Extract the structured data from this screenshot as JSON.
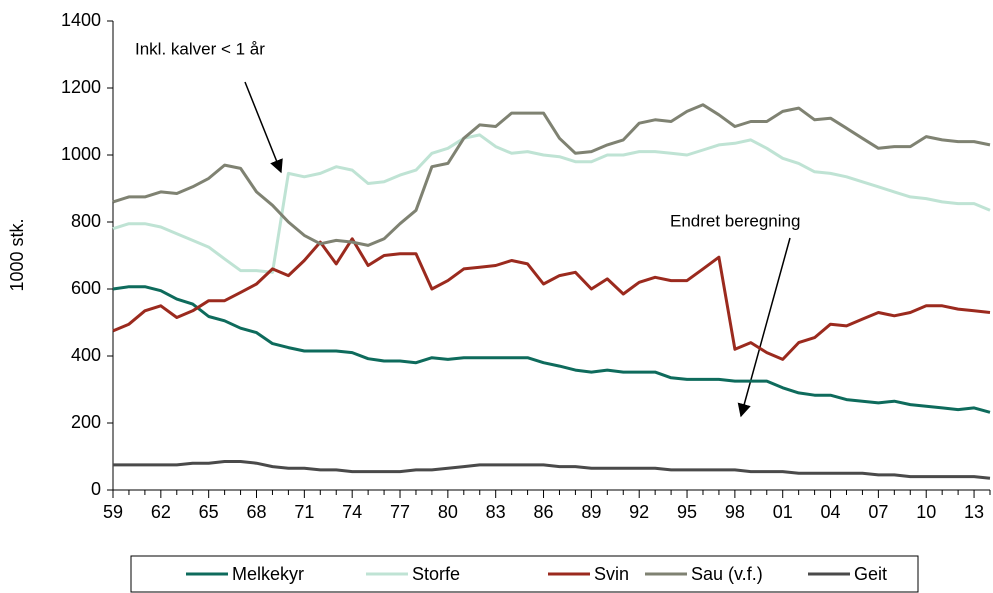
{
  "chart_data": {
    "type": "line",
    "y_label": "1000 stk.",
    "annotations": [
      "Inkl. kalver < 1 år",
      "Endret beregning"
    ],
    "categories": [
      "59",
      null,
      null,
      "62",
      null,
      null,
      "65",
      null,
      null,
      "68",
      null,
      null,
      "71",
      null,
      null,
      "74",
      null,
      null,
      "77",
      null,
      null,
      "80",
      null,
      null,
      "83",
      null,
      null,
      "86",
      null,
      null,
      "89",
      null,
      null,
      "92",
      null,
      null,
      "95",
      null,
      null,
      "98",
      null,
      null,
      "01",
      null,
      null,
      "04",
      null,
      null,
      "07",
      null,
      null,
      "10",
      null,
      null,
      "13",
      null
    ],
    "ylim": [
      0,
      1400
    ],
    "yticks": [
      0,
      200,
      400,
      600,
      800,
      1000,
      1200,
      1400
    ],
    "legend": "bottom",
    "series": [
      {
        "name": "Melkekyr",
        "color": "#0e6b5c",
        "values": [
          600,
          607,
          607,
          595,
          570,
          555,
          518,
          505,
          483,
          470,
          437,
          425,
          415,
          415,
          415,
          410,
          392,
          385,
          385,
          380,
          395,
          390,
          395,
          395,
          395,
          395,
          395,
          380,
          370,
          358,
          352,
          358,
          352,
          352,
          352,
          335,
          330,
          330,
          330,
          325,
          325,
          325,
          305,
          290,
          283,
          283,
          270,
          265,
          260,
          265,
          255,
          250,
          245,
          240,
          245,
          232
        ]
      },
      {
        "name": "Storfe",
        "color": "#bfe3d4",
        "values": [
          780,
          795,
          795,
          785,
          765,
          745,
          725,
          690,
          655,
          655,
          650,
          945,
          935,
          945,
          965,
          955,
          915,
          920,
          940,
          955,
          1005,
          1020,
          1050,
          1060,
          1025,
          1005,
          1010,
          1000,
          995,
          980,
          980,
          1000,
          1000,
          1010,
          1010,
          1005,
          1000,
          1015,
          1030,
          1035,
          1045,
          1020,
          990,
          975,
          950,
          945,
          935,
          920,
          905,
          890,
          875,
          870,
          860,
          855,
          855,
          835
        ]
      },
      {
        "name": "Svin",
        "color": "#9b2a1e",
        "values": [
          475,
          495,
          535,
          550,
          515,
          535,
          565,
          565,
          590,
          615,
          660,
          640,
          685,
          740,
          675,
          750,
          670,
          700,
          705,
          705,
          600,
          625,
          660,
          665,
          670,
          685,
          675,
          615,
          640,
          650,
          600,
          630,
          585,
          620,
          635,
          625,
          625,
          660,
          695,
          420,
          440,
          410,
          390,
          440,
          455,
          495,
          490,
          510,
          530,
          520,
          530,
          550,
          550,
          540,
          535,
          530
        ]
      },
      {
        "name": "Sau (v.f.)",
        "color": "#7f8272",
        "values": [
          860,
          875,
          875,
          890,
          885,
          905,
          930,
          970,
          960,
          890,
          850,
          800,
          760,
          735,
          745,
          740,
          730,
          750,
          795,
          835,
          965,
          975,
          1050,
          1090,
          1085,
          1125,
          1125,
          1125,
          1050,
          1005,
          1010,
          1030,
          1045,
          1095,
          1105,
          1100,
          1130,
          1150,
          1120,
          1085,
          1100,
          1100,
          1130,
          1140,
          1105,
          1110,
          1080,
          1050,
          1020,
          1025,
          1025,
          1055,
          1045,
          1040,
          1040,
          1030
        ]
      },
      {
        "name": "Geit",
        "color": "#4a4a4a",
        "values": [
          75,
          75,
          75,
          75,
          75,
          80,
          80,
          85,
          85,
          80,
          70,
          65,
          65,
          60,
          60,
          55,
          55,
          55,
          55,
          60,
          60,
          65,
          70,
          75,
          75,
          75,
          75,
          75,
          70,
          70,
          65,
          65,
          65,
          65,
          65,
          60,
          60,
          60,
          60,
          60,
          55,
          55,
          55,
          50,
          50,
          50,
          50,
          50,
          45,
          45,
          40,
          40,
          40,
          40,
          40,
          35
        ]
      }
    ]
  }
}
